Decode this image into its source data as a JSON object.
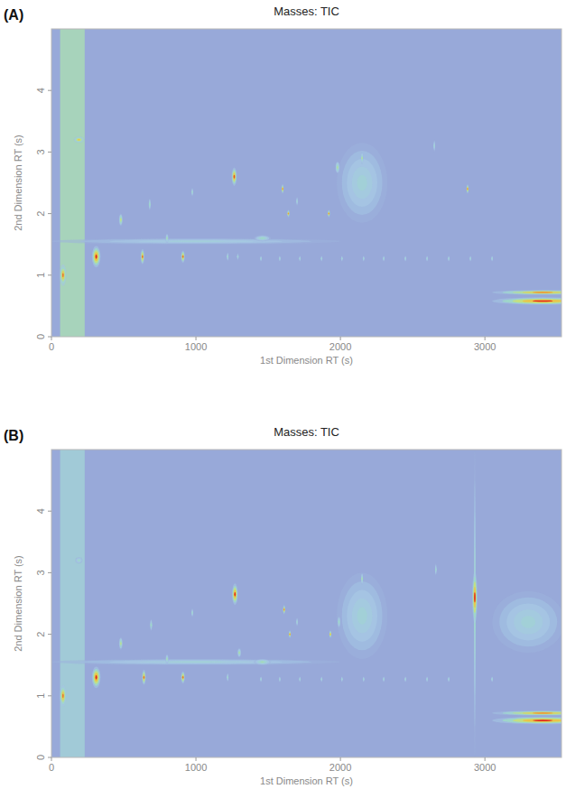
{
  "chart_data": [
    {
      "type": "contour",
      "panel": "(A)",
      "title": "Masses: TIC",
      "x_label": "1st Dimension RT (s)",
      "y_label": "2nd Dimension RT (s)",
      "xlim": [
        0,
        3530
      ],
      "ylim": [
        0,
        5.0
      ],
      "xticks": [
        0,
        1000,
        2000,
        3000
      ],
      "yticks": [
        0,
        1,
        2,
        3,
        4
      ],
      "solvent_front": {
        "x": [
          60,
          230
        ],
        "intensity": 0.45
      },
      "x": [
        2150,
        1000,
        3400,
        3400,
        80,
        190,
        310,
        480,
        630,
        680,
        800,
        910,
        975,
        1220,
        1265,
        1290,
        1460,
        1600,
        1640,
        1700,
        1920,
        1980,
        2150,
        2650,
        2880,
        1450,
        1580,
        1720,
        1870,
        2010,
        2160,
        2300,
        2450,
        2600,
        2750,
        2900,
        3050
      ],
      "values": [
        2.5,
        1.55,
        0.58,
        0.72,
        1.0,
        3.2,
        1.3,
        1.9,
        1.3,
        2.15,
        1.6,
        1.3,
        2.35,
        1.3,
        2.6,
        1.3,
        1.6,
        2.4,
        2.0,
        2.2,
        2.0,
        2.75,
        2.9,
        3.1,
        2.4,
        1.27,
        1.27,
        1.27,
        1.27,
        1.27,
        1.27,
        1.27,
        1.27,
        1.27,
        1.27,
        1.27,
        1.27
      ],
      "intensity": [
        0.3,
        0.28,
        1.0,
        0.85,
        0.9,
        0.8,
        1.0,
        0.6,
        0.9,
        0.4,
        0.45,
        0.9,
        0.35,
        0.35,
        0.95,
        0.3,
        0.4,
        0.85,
        0.85,
        0.3,
        0.85,
        0.5,
        0.5,
        0.3,
        0.85,
        0.3,
        0.3,
        0.3,
        0.3,
        0.3,
        0.3,
        0.3,
        0.3,
        0.3,
        0.3,
        0.3,
        0.3
      ],
      "x_width": [
        350,
        2000,
        700,
        700,
        45,
        70,
        60,
        25,
        25,
        15,
        20,
        25,
        10,
        10,
        35,
        10,
        120,
        15,
        15,
        10,
        15,
        30,
        15,
        10,
        15,
        8,
        8,
        8,
        8,
        8,
        8,
        8,
        8,
        8,
        8,
        8,
        8
      ],
      "y_width": [
        1.3,
        0.1,
        0.12,
        0.08,
        0.35,
        0.1,
        0.35,
        0.2,
        0.25,
        0.2,
        0.15,
        0.2,
        0.15,
        0.15,
        0.3,
        0.12,
        0.1,
        0.15,
        0.12,
        0.15,
        0.12,
        0.2,
        0.2,
        0.2,
        0.15,
        0.1,
        0.1,
        0.1,
        0.1,
        0.1,
        0.1,
        0.1,
        0.1,
        0.1,
        0.1,
        0.1,
        0.1
      ]
    },
    {
      "type": "contour",
      "panel": "(B)",
      "title": "Masses: TIC",
      "x_label": "1st Dimension RT (s)",
      "y_label": "2nd Dimension RT (s)",
      "xlim": [
        0,
        3530
      ],
      "ylim": [
        0,
        5.0
      ],
      "xticks": [
        0,
        1000,
        2000,
        3000
      ],
      "yticks": [
        0,
        1,
        2,
        3,
        4
      ],
      "solvent_front": {
        "x": [
          60,
          230
        ],
        "intensity": 0.3
      },
      "x": [
        2150,
        1000,
        3400,
        3400,
        2930,
        3300,
        80,
        190,
        310,
        480,
        640,
        690,
        800,
        910,
        975,
        1220,
        1270,
        1300,
        1460,
        1610,
        1650,
        1700,
        1930,
        1990,
        2150,
        2660,
        2930,
        1450,
        1580,
        1720,
        1870,
        2010,
        2160,
        2300,
        2450,
        2600,
        2750,
        3050
      ],
      "values": [
        2.3,
        1.55,
        0.6,
        0.72,
        2.5,
        2.2,
        1.0,
        3.2,
        1.3,
        1.85,
        1.3,
        2.15,
        1.6,
        1.3,
        2.35,
        1.3,
        2.65,
        1.7,
        1.55,
        2.4,
        2.0,
        2.2,
        2.0,
        2.2,
        2.9,
        3.05,
        2.6,
        1.27,
        1.27,
        1.27,
        1.27,
        1.27,
        1.27,
        1.27,
        1.27,
        1.27,
        1.27,
        1.27
      ],
      "intensity": [
        0.3,
        0.3,
        1.0,
        0.85,
        0.4,
        0.3,
        0.9,
        0.4,
        1.0,
        0.55,
        0.9,
        0.4,
        0.45,
        0.9,
        0.35,
        0.35,
        1.0,
        0.5,
        0.45,
        0.85,
        0.85,
        0.3,
        0.8,
        0.4,
        0.45,
        0.35,
        1.0,
        0.3,
        0.3,
        0.3,
        0.3,
        0.3,
        0.3,
        0.3,
        0.3,
        0.3,
        0.3,
        0.3
      ],
      "x_width": [
        350,
        2000,
        700,
        700,
        14,
        500,
        45,
        50,
        60,
        25,
        25,
        15,
        20,
        25,
        10,
        10,
        40,
        25,
        120,
        15,
        15,
        10,
        15,
        20,
        15,
        10,
        35,
        8,
        8,
        8,
        8,
        8,
        8,
        8,
        8,
        8,
        8,
        8
      ],
      "y_width": [
        1.4,
        0.1,
        0.12,
        0.08,
        5.0,
        1.0,
        0.35,
        0.1,
        0.35,
        0.2,
        0.25,
        0.2,
        0.15,
        0.2,
        0.15,
        0.15,
        0.35,
        0.15,
        0.1,
        0.15,
        0.12,
        0.15,
        0.12,
        0.2,
        0.2,
        0.2,
        0.85,
        0.1,
        0.1,
        0.1,
        0.1,
        0.1,
        0.1,
        0.1,
        0.1,
        0.1,
        0.1,
        0.1
      ]
    }
  ]
}
